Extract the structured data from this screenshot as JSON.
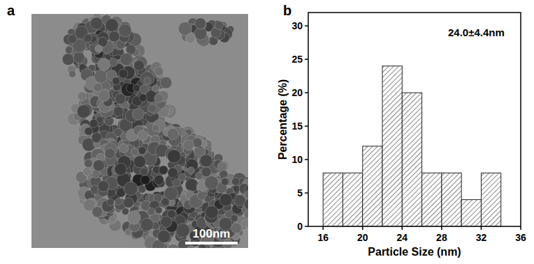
{
  "image_panel": {
    "letter": "a",
    "scale_bar": "100nm"
  },
  "chart_data": {
    "type": "histogram",
    "panel_label": "b",
    "bins": [
      16,
      18,
      20,
      22,
      24,
      26,
      28,
      30,
      32,
      34
    ],
    "values": [
      8,
      8,
      12,
      24,
      20,
      8,
      8,
      4,
      8
    ],
    "color": "#333333",
    "xlabel": "Particle Size (nm)",
    "ylabel": "Percentage (%)",
    "annotation": "24.0±4.4nm",
    "xlim": [
      14.5,
      36
    ],
    "xticks": [
      16,
      20,
      24,
      28,
      32,
      36
    ],
    "ylim": [
      0,
      32
    ],
    "yticks": [
      0,
      5,
      10,
      15,
      20,
      25,
      30
    ],
    "grid": false
  }
}
